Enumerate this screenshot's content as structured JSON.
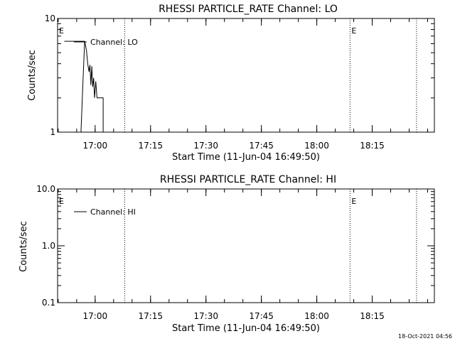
{
  "footer_timestamp": "18-Oct-2021 04:56",
  "chart_data": [
    {
      "type": "line",
      "title": "RHESSI PARTICLE_RATE Channel: LO",
      "xlabel": "Start Time (11-Jun-04 16:49:50)",
      "ylabel": "Counts/sec",
      "yscale": "log",
      "ylim": [
        1,
        10
      ],
      "ytick_labels": [
        "1",
        "10"
      ],
      "xlim": [
        "16:49:50",
        "18:31:50"
      ],
      "xtick_labels": [
        "17:00",
        "17:15",
        "17:30",
        "17:45",
        "18:00",
        "18:15"
      ],
      "legend": "Channel: LO",
      "legend_position": "top-left",
      "event_lines": [
        "17:08:00",
        "18:09:00",
        "18:27:00"
      ],
      "event_markers": [
        {
          "label": "E",
          "x": "16:49:50"
        },
        {
          "label": "E",
          "x": "18:09:00"
        }
      ],
      "series": [
        {
          "name": "Channel: LO",
          "points": [
            [
              "16:51:40",
              6.3
            ],
            [
              "16:56:10",
              6.3
            ],
            [
              "16:57:10",
              6.3
            ],
            [
              "16:57:40",
              5.2
            ],
            [
              "16:58:00",
              4.0
            ],
            [
              "16:58:20",
              3.4
            ],
            [
              "16:58:35",
              3.9
            ],
            [
              "16:58:50",
              2.6
            ],
            [
              "16:59:05",
              3.8
            ],
            [
              "16:59:20",
              2.5
            ],
            [
              "16:59:35",
              3.0
            ],
            [
              "16:59:50",
              2.0
            ],
            [
              "17:00:10",
              2.8
            ],
            [
              "17:00:30",
              2.0
            ],
            [
              "17:02:10",
              2.0
            ],
            [
              "17:02:10",
              1.0
            ]
          ],
          "lead_in": [
            [
              "16:56:10",
              1.0
            ],
            [
              "16:56:40",
              2.6
            ],
            [
              "16:57:10",
              6.3
            ]
          ]
        }
      ]
    },
    {
      "type": "line",
      "title": "RHESSI PARTICLE_RATE Channel: HI",
      "xlabel": "Start Time (11-Jun-04 16:49:50)",
      "ylabel": "Counts/sec",
      "yscale": "log",
      "ylim": [
        0.1,
        10
      ],
      "ytick_labels": [
        "0.1",
        "1.0",
        "10.0"
      ],
      "xlim": [
        "16:49:50",
        "18:31:50"
      ],
      "xtick_labels": [
        "17:00",
        "17:15",
        "17:30",
        "17:45",
        "18:00",
        "18:15"
      ],
      "legend": "Channel: HI",
      "legend_position": "top-left",
      "event_lines": [
        "17:08:00",
        "18:09:00",
        "18:27:00"
      ],
      "event_markers": [
        {
          "label": "E",
          "x": "16:49:50"
        },
        {
          "label": "E",
          "x": "18:09:00"
        }
      ],
      "series": [
        {
          "name": "Channel: HI",
          "points": []
        }
      ]
    }
  ]
}
